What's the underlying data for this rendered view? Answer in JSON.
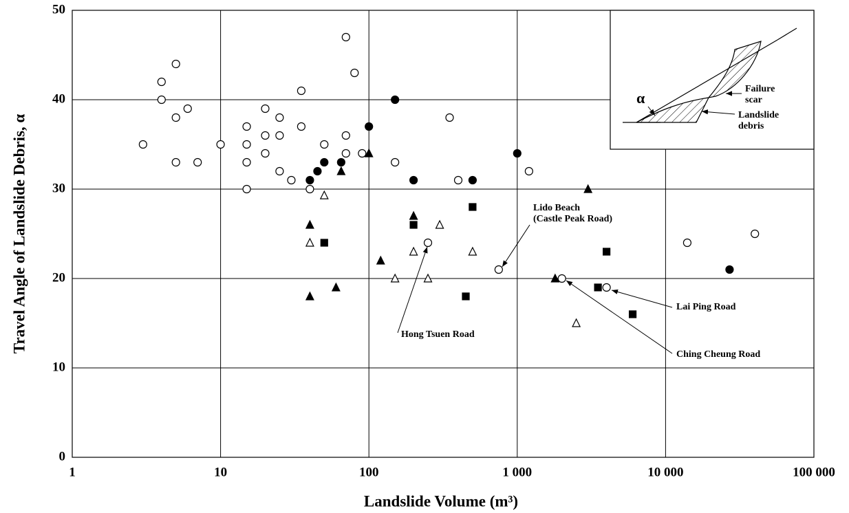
{
  "chart_data": {
    "type": "scatter",
    "x_label": "Landslide Volume (m³)",
    "y_label": "Travel Angle of Landslide Debris, α",
    "log_x": true,
    "grid": true,
    "xlim": [
      1,
      100000
    ],
    "ylim": [
      0,
      50
    ],
    "xticks": [
      1,
      10,
      100,
      {
        "value": 1000,
        "label": "1 000"
      },
      {
        "value": 10000,
        "label": "10 000"
      },
      {
        "value": 100000,
        "label": "100 000"
      }
    ],
    "yticks": [
      0,
      10,
      20,
      30,
      40,
      50
    ],
    "series": [
      {
        "marker": "circle",
        "filled": false,
        "color": "#000000",
        "x": [
          3,
          4,
          4,
          5,
          5,
          5,
          6,
          7,
          10,
          15,
          15,
          15,
          15,
          20,
          20,
          20,
          25,
          25,
          25,
          30,
          35,
          35,
          40,
          50,
          70,
          70,
          70,
          80,
          90,
          150,
          250,
          350,
          400,
          750,
          1200,
          2000,
          4000,
          14000,
          40000
        ],
        "values": [
          35,
          42,
          40,
          44,
          38,
          33,
          39,
          33,
          35,
          37,
          35,
          33,
          30,
          39,
          36,
          34,
          38,
          36,
          32,
          31,
          41,
          37,
          30,
          35,
          47,
          36,
          34,
          43,
          34,
          33,
          24,
          38,
          31,
          21,
          32,
          20,
          19,
          24,
          25
        ]
      },
      {
        "marker": "circle",
        "filled": true,
        "color": "#000000",
        "x": [
          40,
          45,
          50,
          65,
          100,
          150,
          200,
          500,
          1000,
          27000
        ],
        "values": [
          31,
          32,
          33,
          33,
          37,
          40,
          31,
          31,
          34,
          21
        ]
      },
      {
        "marker": "triangle",
        "filled": true,
        "color": "#000000",
        "x": [
          40,
          40,
          65,
          60,
          100,
          120,
          200,
          1800,
          3000
        ],
        "values": [
          26,
          18,
          32,
          19,
          34,
          22,
          27,
          20,
          30
        ]
      },
      {
        "marker": "triangle",
        "filled": false,
        "color": "#000000",
        "x": [
          40,
          50,
          200,
          150,
          250,
          300,
          500,
          2500
        ],
        "values": [
          24,
          29.3,
          23,
          20,
          20,
          26,
          23,
          15
        ]
      },
      {
        "marker": "square",
        "filled": true,
        "color": "#000000",
        "x": [
          50,
          200,
          500,
          450,
          3500,
          4000,
          6000
        ],
        "values": [
          24,
          26,
          28,
          18,
          19,
          23,
          16
        ]
      }
    ],
    "annotations": [
      {
        "text": [
          "Hong Tsuen Road"
        ]
      },
      {
        "text": [
          "Lido Beach",
          "(Castle Peak Road)"
        ]
      },
      {
        "text": [
          "Lai Ping Road"
        ]
      },
      {
        "text": [
          "Ching Cheung Road"
        ]
      }
    ],
    "inset": {
      "labels": [
        {
          "text": [
            "α"
          ]
        },
        {
          "text": [
            "Failure",
            "scar"
          ]
        },
        {
          "text": [
            "Landslide",
            "debris"
          ]
        }
      ]
    }
  }
}
